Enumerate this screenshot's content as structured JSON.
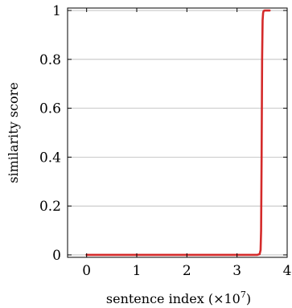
{
  "chart_data": {
    "type": "line",
    "title": "",
    "xlabel": "sentence index (×10",
    "xlabel_exponent": "7",
    "xlabel_suffix": ")",
    "ylabel": "similarity score",
    "xlim": [
      -0.38,
      4.0
    ],
    "ylim": [
      -0.01,
      1.01
    ],
    "grid": "horizontal",
    "x_ticks": [
      0,
      1,
      2,
      3,
      4
    ],
    "x_tick_labels": [
      "0",
      "1",
      "2",
      "3",
      "4"
    ],
    "y_ticks": [
      0,
      0.2,
      0.4,
      0.6,
      0.8,
      1
    ],
    "y_tick_labels": [
      "0",
      "0.2",
      "0.4",
      "0.6",
      "0.8",
      "1"
    ],
    "series": [
      {
        "color": "#d42a2a",
        "x": [
          0,
          1,
          2,
          3,
          3.4,
          3.45,
          3.47,
          3.48,
          3.49,
          3.5,
          3.51,
          3.52,
          3.53,
          3.55,
          3.6,
          3.65
        ],
        "y": [
          0,
          0,
          0,
          0,
          0,
          0.003,
          0.02,
          0.1,
          0.4,
          0.8,
          0.96,
          0.99,
          0.998,
          1,
          1,
          1
        ]
      }
    ]
  }
}
